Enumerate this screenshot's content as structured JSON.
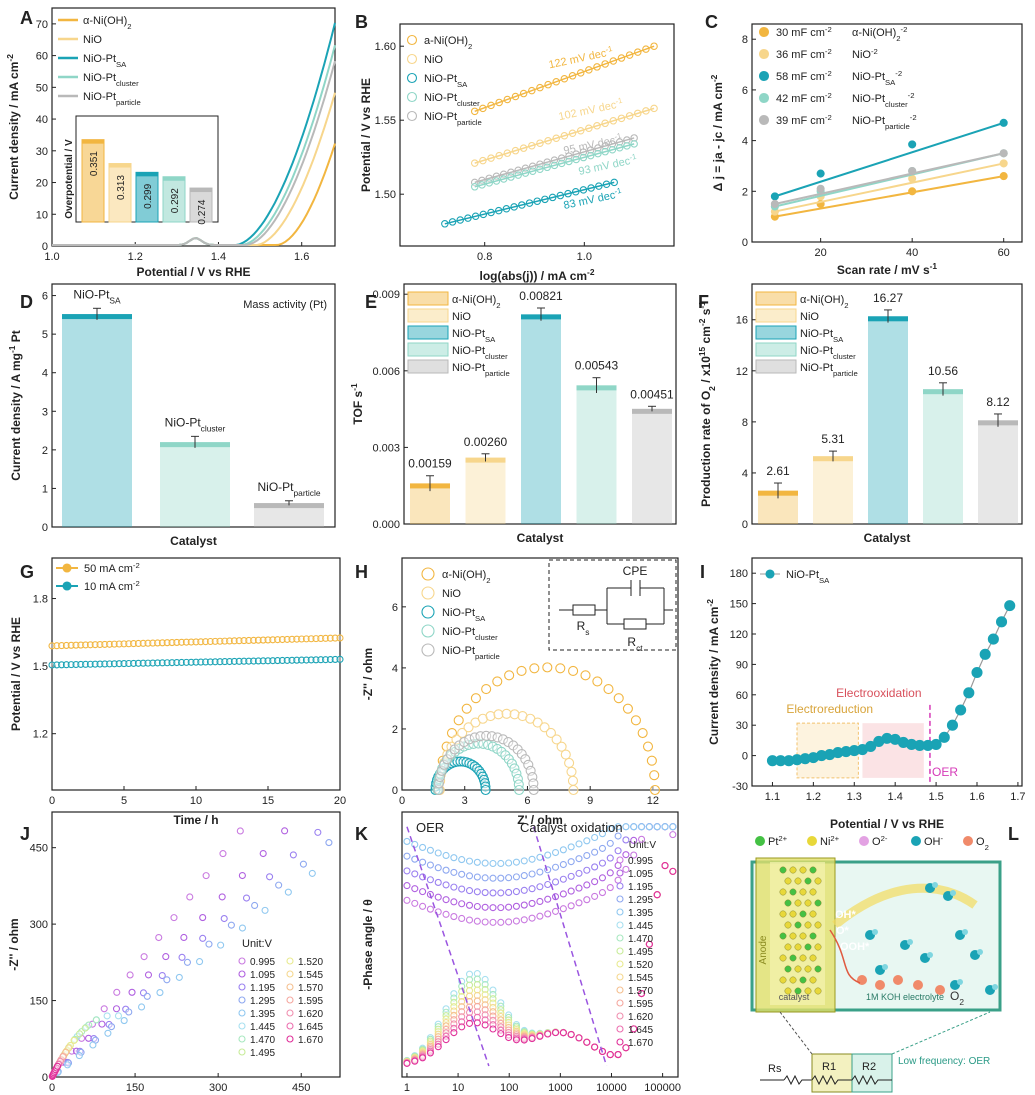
{
  "colors": {
    "a_nioh": "#f2b640",
    "nio": "#f7d68c",
    "sa": "#1aa3b5",
    "cluster": "#8fd6c7",
    "particle": "#b9b9b9",
    "pink": "#d63ab8",
    "purple": "#9a55e0"
  },
  "chart_data": [
    {
      "panel": "A",
      "type": "line",
      "xlabel": "Potential / V vs RHE",
      "ylabel": "Current density / mA cm",
      "ylabel_sup": "-2",
      "xlim": [
        1.0,
        1.68
      ],
      "ylim": [
        0,
        75
      ],
      "xticks": [
        "1.0",
        "1.2",
        "1.4",
        "1.6"
      ],
      "yticks": [
        "0",
        "10",
        "20",
        "30",
        "40",
        "50",
        "60",
        "70"
      ],
      "legend": [
        {
          "name": "α-Ni(OH)",
          "sub": "2"
        },
        {
          "name": "NiO",
          "sub": ""
        },
        {
          "name": "NiO-Pt",
          "sub": "SA"
        },
        {
          "name": "NiO-Pt",
          "sub": "cluster"
        },
        {
          "name": "NiO-Pt",
          "sub": "particle"
        }
      ],
      "series": [
        {
          "key": "a",
          "onset": 1.54,
          "end": 32
        },
        {
          "key": "n",
          "onset": 1.49,
          "end": 48
        },
        {
          "key": "s",
          "onset": 1.44,
          "end": 70
        },
        {
          "key": "c",
          "onset": 1.455,
          "end": 63
        },
        {
          "key": "p",
          "onset": 1.465,
          "end": 58
        }
      ],
      "inset": {
        "ylabel": "Overpotential / V",
        "values": [
          "0.351",
          "0.313",
          "0.299",
          "0.292",
          "0.274"
        ]
      }
    },
    {
      "panel": "B",
      "type": "scatter",
      "xlabel": "log(abs(j)) / mA cm",
      "xlabel_sup": "-2",
      "ylabel": "Potential / V vs RHE",
      "xlim": [
        0.63,
        1.18
      ],
      "ylim": [
        1.465,
        1.615
      ],
      "xticks": [
        "0.8",
        "1.0"
      ],
      "yticks": [
        "1.50",
        "1.55",
        "1.60"
      ],
      "legend": [
        {
          "name": "a-Ni(OH)",
          "sub": "2"
        },
        {
          "name": "NiO",
          "sub": ""
        },
        {
          "name": "NiO-Pt",
          "sub": "SA"
        },
        {
          "name": "NiO-Pt",
          "sub": "cluster"
        },
        {
          "name": "NiO-Pt",
          "sub": "particle"
        }
      ],
      "series": [
        {
          "key": "a",
          "x": [
            0.78,
            1.14
          ],
          "y": [
            1.556,
            1.6
          ],
          "label": "122 mV dec",
          "label_sup": "-1"
        },
        {
          "key": "n",
          "x": [
            0.78,
            1.14
          ],
          "y": [
            1.521,
            1.558
          ],
          "label": "102 mV dec",
          "label_sup": "-1"
        },
        {
          "key": "p",
          "x": [
            0.78,
            1.1
          ],
          "y": [
            1.508,
            1.538
          ],
          "label": "95 mV dec",
          "label_sup": "-1"
        },
        {
          "key": "c",
          "x": [
            0.78,
            1.1
          ],
          "y": [
            1.505,
            1.534
          ],
          "label": "93 mV dec",
          "label_sup": "-1"
        },
        {
          "key": "s",
          "x": [
            0.72,
            1.06
          ],
          "y": [
            1.48,
            1.508
          ],
          "label": "83 mV dec",
          "label_sup": "-1"
        }
      ]
    },
    {
      "panel": "C",
      "type": "scatter",
      "xlabel": "Scan rate / mV s",
      "xlabel_sup": "-1",
      "ylabel": "Δ j = ja - jc / mA cm",
      "ylabel_sup": "-2",
      "xlim": [
        5,
        64
      ],
      "ylim": [
        0,
        8.6
      ],
      "xticks": [
        "20",
        "40",
        "60"
      ],
      "yticks": [
        "0",
        "2",
        "4",
        "6",
        "8"
      ],
      "legend": [
        {
          "value": "30 mF cm",
          "sup": "-2",
          "name": "α-Ni(OH)",
          "sub": "2"
        },
        {
          "value": "36 mF cm",
          "sup": "-2",
          "name": "NiO",
          "sub": ""
        },
        {
          "value": "58 mF cm",
          "sup": "-2",
          "name": "NiO-Pt",
          "sub": "SA"
        },
        {
          "value": "42 mF cm",
          "sup": "-2",
          "name": "NiO-Pt",
          "sub": "cluster"
        },
        {
          "value": "39 mF cm",
          "sup": "-2",
          "name": "NiO-Pt",
          "sub": "particle"
        }
      ],
      "x": [
        10,
        20,
        40,
        60
      ],
      "series": [
        {
          "key": "a",
          "y": [
            1.0,
            1.5,
            2.0,
            2.6
          ]
        },
        {
          "key": "n",
          "y": [
            1.2,
            1.8,
            2.5,
            3.1
          ]
        },
        {
          "key": "s",
          "y": [
            1.8,
            2.7,
            3.85,
            4.7
          ]
        },
        {
          "key": "c",
          "y": [
            1.4,
            2.0,
            2.8,
            3.5
          ]
        },
        {
          "key": "p",
          "y": [
            1.5,
            2.1,
            2.8,
            3.5
          ]
        }
      ]
    },
    {
      "panel": "D",
      "type": "bar",
      "xlabel": "Catalyst",
      "ylabel": "Current density / A mg",
      "ylabel_sup": "-1",
      "ylabel_tail": " Pt",
      "note": "Mass activity (Pt)",
      "ylim": [
        0,
        6.3
      ],
      "yticks": [
        "0",
        "1",
        "2",
        "3",
        "4",
        "5",
        "6"
      ],
      "bars": [
        {
          "name": "NiO-Pt",
          "sub": "SA",
          "value": 5.52,
          "err": 0.15,
          "key": "s"
        },
        {
          "name": "NiO-Pt",
          "sub": "cluster",
          "value": 2.2,
          "err": 0.15,
          "key": "c"
        },
        {
          "name": "NiO-Pt",
          "sub": "particle",
          "value": 0.62,
          "err": 0.06,
          "key": "p"
        }
      ]
    },
    {
      "panel": "E",
      "type": "bar",
      "xlabel": "Catalyst",
      "ylabel": "TOF s",
      "ylabel_sup": "-1",
      "ylim": [
        0,
        0.0094
      ],
      "yticks": [
        "0.000",
        "0.003",
        "0.006",
        "0.009"
      ],
      "legend": [
        {
          "name": "α-Ni(OH)",
          "sub": "2"
        },
        {
          "name": "NiO",
          "sub": ""
        },
        {
          "name": "NiO-Pt",
          "sub": "SA"
        },
        {
          "name": "NiO-Pt",
          "sub": "cluster"
        },
        {
          "name": "NiO-Pt",
          "sub": "particle"
        }
      ],
      "bars": [
        {
          "key": "a",
          "value": 0.00159,
          "err": 0.0003,
          "label": "0.00159"
        },
        {
          "key": "n",
          "value": 0.0026,
          "err": 0.00015,
          "label": "0.00260"
        },
        {
          "key": "s",
          "value": 0.00821,
          "err": 0.00025,
          "label": "0.00821"
        },
        {
          "key": "c",
          "value": 0.00543,
          "err": 0.0003,
          "label": "0.00543"
        },
        {
          "key": "p",
          "value": 0.00451,
          "err": 0.0001,
          "label": "0.00451"
        }
      ]
    },
    {
      "panel": "F",
      "type": "bar",
      "xlabel": "Catalyst",
      "ylabel": "Production rate of O",
      "ylabel_sub": "2",
      "ylabel_tail": " / x10",
      "ylabel_sup": "15",
      "ylabel_tail2": " cm",
      "ylabel_sup2": "-2",
      "ylabel_tail3": " s",
      "ylabel_sup3": "-1",
      "ylim": [
        0,
        18.8
      ],
      "yticks": [
        "0",
        "4",
        "8",
        "12",
        "16"
      ],
      "legend": [
        {
          "name": "α-Ni(OH)",
          "sub": "2"
        },
        {
          "name": "NiO",
          "sub": ""
        },
        {
          "name": "NiO-Pt",
          "sub": "SA"
        },
        {
          "name": "NiO-Pt",
          "sub": "cluster"
        },
        {
          "name": "NiO-Pt",
          "sub": "particle"
        }
      ],
      "bars": [
        {
          "key": "a",
          "value": 2.61,
          "err": 0.6,
          "label": "2.61"
        },
        {
          "key": "n",
          "value": 5.31,
          "err": 0.4,
          "label": "5.31"
        },
        {
          "key": "s",
          "value": 16.27,
          "err": 0.5,
          "label": "16.27"
        },
        {
          "key": "c",
          "value": 10.56,
          "err": 0.5,
          "label": "10.56"
        },
        {
          "key": "p",
          "value": 8.12,
          "err": 0.5,
          "label": "8.12"
        }
      ]
    },
    {
      "panel": "G",
      "type": "line",
      "xlabel": "Time / h",
      "ylabel": "Potential / V vs RHE",
      "xlim": [
        0,
        20
      ],
      "ylim": [
        0.95,
        1.98
      ],
      "xticks": [
        "0",
        "5",
        "10",
        "15",
        "20"
      ],
      "yticks": [
        "1.2",
        "1.5",
        "1.8"
      ],
      "legend": [
        {
          "name": "50 mA cm",
          "sup": "-2",
          "key": "a"
        },
        {
          "name": "10 mA cm",
          "sup": "-2",
          "key": "s"
        }
      ],
      "series": [
        {
          "key": "a",
          "start": 1.59,
          "end": 1.625
        },
        {
          "key": "s",
          "start": 1.505,
          "end": 1.53
        }
      ]
    },
    {
      "panel": "H",
      "type": "scatter",
      "xlabel": "Z' / ohm",
      "ylabel": "-Z'' / ohm",
      "xlim": [
        0,
        13.2
      ],
      "ylim": [
        0,
        7.6
      ],
      "xticks": [
        "0",
        "3",
        "6",
        "9",
        "12"
      ],
      "yticks": [
        "0",
        "2",
        "4",
        "6"
      ],
      "legend": [
        {
          "name": "α-Ni(OH)",
          "sub": "2"
        },
        {
          "name": "NiO",
          "sub": ""
        },
        {
          "name": "NiO-Pt",
          "sub": "SA"
        },
        {
          "name": "NiO-Pt",
          "sub": "cluster"
        },
        {
          "name": "NiO-Pt",
          "sub": "particle"
        }
      ],
      "circuit": {
        "cpe": "CPE",
        "rs": "R",
        "rs_sub": "s",
        "rct": "R",
        "rct_sub": "ct"
      },
      "series": [
        {
          "key": "a",
          "x0": 1.8,
          "x1": 12.1
        },
        {
          "key": "n",
          "x0": 1.8,
          "x1": 8.2
        },
        {
          "key": "s",
          "x0": 1.6,
          "x1": 4.0
        },
        {
          "key": "c",
          "x0": 1.7,
          "x1": 5.6
        },
        {
          "key": "p",
          "x0": 1.75,
          "x1": 6.3
        }
      ]
    },
    {
      "panel": "I",
      "type": "line",
      "xlabel": "Potential / V vs RHE",
      "ylabel": "Current density / mA cm",
      "ylabel_sup": "-2",
      "xlim": [
        1.05,
        1.71
      ],
      "ylim": [
        -30,
        195
      ],
      "xticks": [
        "1.1",
        "1.2",
        "1.3",
        "1.4",
        "1.5",
        "1.6",
        "1.7"
      ],
      "yticks": [
        "-30",
        "0",
        "30",
        "60",
        "90",
        "120",
        "150",
        "180"
      ],
      "legend": [
        {
          "name": "NiO-Pt",
          "sub": "SA"
        }
      ],
      "annotations": [
        "Electrooxidation",
        "Electroreduction",
        "OER"
      ],
      "x": [
        1.1,
        1.12,
        1.14,
        1.16,
        1.18,
        1.2,
        1.22,
        1.24,
        1.26,
        1.28,
        1.3,
        1.32,
        1.34,
        1.36,
        1.38,
        1.4,
        1.42,
        1.44,
        1.46,
        1.48,
        1.5,
        1.52,
        1.54,
        1.56,
        1.58,
        1.6,
        1.62,
        1.64,
        1.66,
        1.68
      ],
      "y": [
        -5,
        -5,
        -5,
        -4,
        -3,
        -2,
        0,
        1,
        3,
        4,
        5,
        6,
        9,
        14,
        17,
        16,
        13,
        11,
        10,
        10,
        11,
        18,
        30,
        45,
        62,
        82,
        100,
        115,
        132,
        148
      ]
    },
    {
      "panel": "J",
      "type": "scatter",
      "ylabel": "-Z'' / ohm",
      "xlim": [
        0,
        520
      ],
      "ylim": [
        0,
        520
      ],
      "xticks": [
        "0",
        "150",
        "300",
        "450"
      ],
      "yticks": [
        "0",
        "150",
        "300",
        "450"
      ],
      "unit": "Unit:V",
      "legend": [
        "0.995",
        "1.095",
        "1.195",
        "1.295",
        "1.395",
        "1.445",
        "1.470",
        "1.495",
        "1.520",
        "1.545",
        "1.570",
        "1.595",
        "1.620",
        "1.645",
        "1.670"
      ]
    },
    {
      "panel": "K",
      "type": "scatter",
      "ylabel": "-Phase angle / θ",
      "xscale": "log",
      "xlim": [
        0.8,
        200000
      ],
      "ylim": [
        0,
        72
      ],
      "xticks": [
        "1",
        "10",
        "100",
        "1000",
        "10000",
        "100000"
      ],
      "annotations": [
        "OER",
        "Catalyst oxidation"
      ],
      "unit": "Unit:V",
      "legend": [
        "0.995",
        "1.095",
        "1.195",
        "1.295",
        "1.395",
        "1.445",
        "1.470",
        "1.495",
        "1.520",
        "1.545",
        "1.570",
        "1.595",
        "1.620",
        "1.645",
        "1.670"
      ]
    },
    {
      "panel": "L",
      "type": "diagram",
      "legend": [
        {
          "name": "Pt",
          "sup": "2+",
          "color": "#44c144"
        },
        {
          "name": "Ni",
          "sup": "2+",
          "color": "#e8d83a"
        },
        {
          "name": "O",
          "sup": "2-",
          "color": "#e3a2e3"
        },
        {
          "name": "OH",
          "sup": "-",
          "color": "#1aa3b5"
        },
        {
          "name": "O",
          "sub": "2",
          "color": "#f08a6a"
        }
      ],
      "species": [
        "OH*",
        "O*",
        "OOH*"
      ],
      "o2": "O",
      "o2_sub": "2",
      "anode": "Anode",
      "catalyst": "catalyst",
      "electrolyte": "1M KOH electrolyte",
      "circuit": {
        "rs": "Rs",
        "r1": "R1",
        "r2": "R2",
        "note": "Low frequency: OER"
      }
    }
  ]
}
